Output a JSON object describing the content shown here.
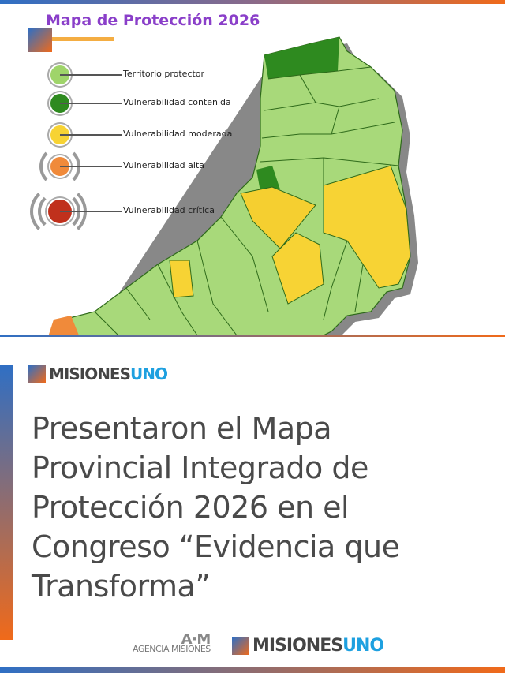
{
  "map_image": {
    "title": "Mapa de Protección 2026",
    "legend": [
      {
        "label": "Territorio protector",
        "color": "#9fd46a"
      },
      {
        "label": "Vulnerabilidad contenida",
        "color": "#2e8a1f"
      },
      {
        "label": "Vulnerabilidad moderada",
        "color": "#f7d334"
      },
      {
        "label": "Vulnerabilidad alta",
        "color": "#f08a3a"
      },
      {
        "label": "Vulnerabilidad crítica",
        "color": "#c0301c"
      }
    ]
  },
  "brand": {
    "name_part1": "MISIONES",
    "name_part2": "UNO"
  },
  "headline": "Presentaron el Mapa Provincial Integrado de Protección 2026 en el Congreso “Evidencia que Transforma”",
  "footer": {
    "agency_mark": "A·M",
    "agency_name": "AGENCIA MISIONES",
    "brand_part1": "MISIONES",
    "brand_part2": "UNO"
  },
  "colors": {
    "accent_blue": "#2f6fc4",
    "accent_orange": "#f06a1a",
    "title_purple": "#8a3fc9"
  }
}
